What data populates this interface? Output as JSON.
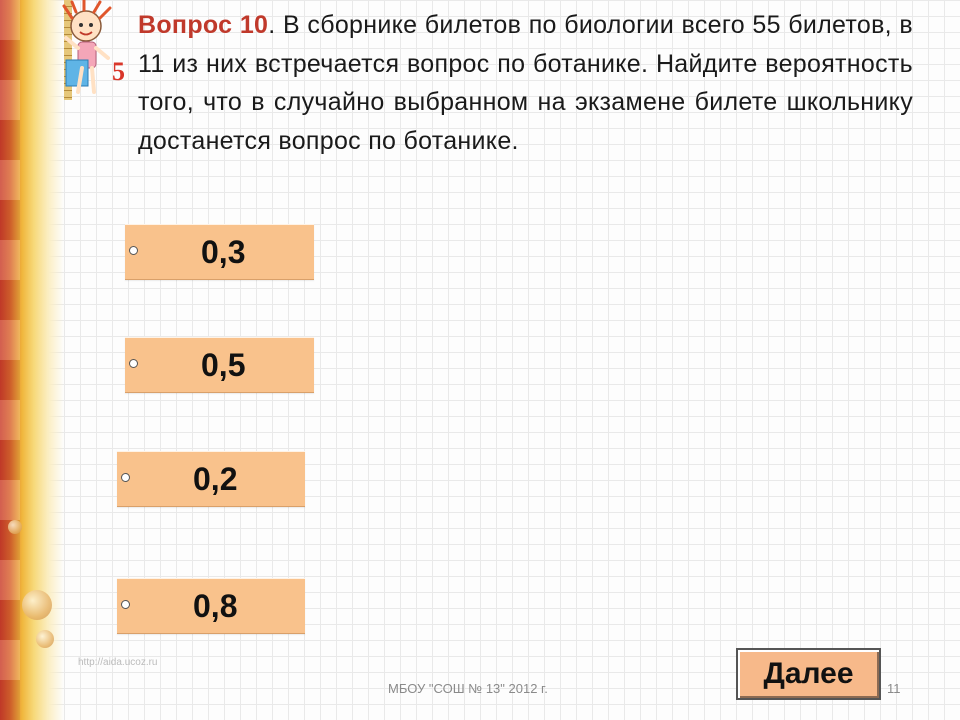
{
  "question": {
    "number_label": "Вопрос 10",
    "text": ". В сборнике билетов по биологии всего 55 билетов, в 11 из них встречается вопрос по ботанике. Найдите вероятность того, что в случайно выбранном на экзамене билете школьнику достанется вопрос по ботанике."
  },
  "answers": [
    {
      "label": "0,3"
    },
    {
      "label": "0,5"
    },
    {
      "label": "0,2"
    },
    {
      "label": "0,8"
    }
  ],
  "next_button": {
    "label": "Далее"
  },
  "footer": {
    "text": "МБОУ \"СОШ № 13\"  2012 г.",
    "slide_number": "11",
    "watermark": "http://aida.ucoz.ru"
  },
  "mascot": {
    "digit": "5",
    "icon": "student-mascot-icon"
  },
  "colors": {
    "answer_bg": "#f9c28c",
    "button_bg": "#f7b98a",
    "accent": "#c0392b"
  }
}
